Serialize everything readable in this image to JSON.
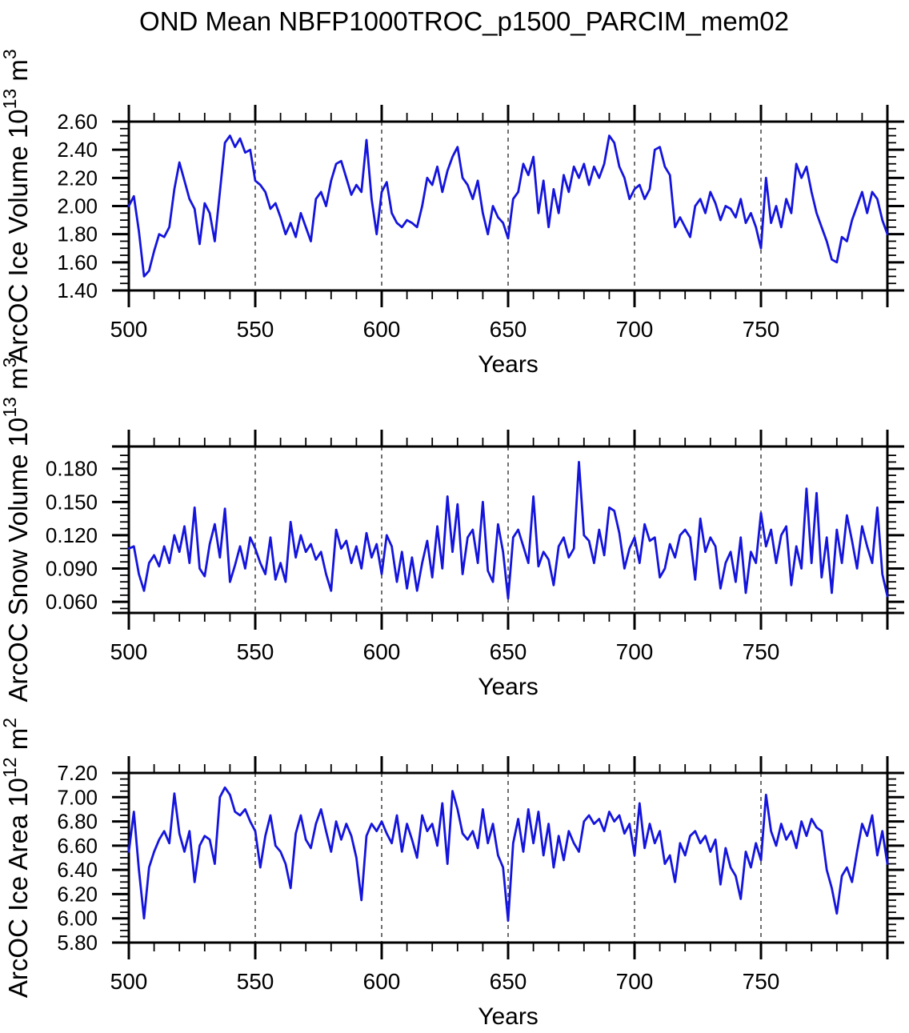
{
  "title": "OND Mean NBFP1000TROC_p1500_PARCIM_mem02",
  "xlabel": "Years",
  "colors": {
    "line": "#1414dd",
    "grid": "#404040",
    "axis": "#000000",
    "background": "#ffffff",
    "text": "#000000"
  },
  "chart_data": [
    {
      "type": "line",
      "name": "ice-volume",
      "title": "",
      "ylabel": "ArcOC Ice Volume 10^13 m^3",
      "ylabel_parts": [
        {
          "t": "ArcOC Ice Volume 10"
        },
        {
          "t": "13",
          "sup": true
        },
        {
          "t": " m"
        },
        {
          "t": "3",
          "sup": true
        }
      ],
      "xlabel": "Years",
      "xlim": [
        500,
        800
      ],
      "ylim": [
        1.4,
        2.6
      ],
      "x_major_step": 50,
      "x_minor_step": 10,
      "x_ticks_labeled": [
        500,
        550,
        600,
        650,
        700,
        750
      ],
      "y_ticks": [
        1.4,
        1.6,
        1.8,
        2.0,
        2.2,
        2.4,
        2.6
      ],
      "y_tick_labels": [
        "1.40",
        "1.60",
        "1.80",
        "2.00",
        "2.20",
        "2.40",
        "2.60"
      ],
      "y_minor_step": 0.05,
      "gridlines_x": [
        550,
        600,
        650,
        700,
        750
      ],
      "grid": "vertical-dashed",
      "legend": "none",
      "series": [
        {
          "name": "OND mean ArcOC ice volume (10^13 m^3)",
          "x_start": 500,
          "x_step": 2,
          "values": [
            2.0,
            2.07,
            1.82,
            1.5,
            1.54,
            1.68,
            1.8,
            1.78,
            1.85,
            2.12,
            2.31,
            2.18,
            2.05,
            1.98,
            1.73,
            2.02,
            1.95,
            1.75,
            2.1,
            2.45,
            2.5,
            2.42,
            2.48,
            2.38,
            2.4,
            2.18,
            2.15,
            2.1,
            1.98,
            2.02,
            1.92,
            1.8,
            1.88,
            1.78,
            1.95,
            1.85,
            1.75,
            2.05,
            2.1,
            2.0,
            2.18,
            2.3,
            2.32,
            2.2,
            2.08,
            2.15,
            2.1,
            2.47,
            2.05,
            1.8,
            2.1,
            2.17,
            1.95,
            1.88,
            1.85,
            1.9,
            1.88,
            1.85,
            2.0,
            2.2,
            2.15,
            2.28,
            2.1,
            2.25,
            2.35,
            2.42,
            2.2,
            2.15,
            2.05,
            2.18,
            1.95,
            1.8,
            2.0,
            1.92,
            1.88,
            1.77,
            2.05,
            2.1,
            2.3,
            2.22,
            2.35,
            1.95,
            2.18,
            1.85,
            2.12,
            1.95,
            2.22,
            2.1,
            2.28,
            2.2,
            2.3,
            2.15,
            2.28,
            2.2,
            2.3,
            2.5,
            2.45,
            2.28,
            2.2,
            2.05,
            2.12,
            2.15,
            2.05,
            2.12,
            2.4,
            2.42,
            2.28,
            2.22,
            1.85,
            1.92,
            1.85,
            1.78,
            2.0,
            2.05,
            1.95,
            2.1,
            2.02,
            1.9,
            2.0,
            1.98,
            1.92,
            2.05,
            1.88,
            1.95,
            1.85,
            1.7,
            2.2,
            1.88,
            2.0,
            1.85,
            2.05,
            1.95,
            2.3,
            2.2,
            2.28,
            2.1,
            1.95,
            1.85,
            1.75,
            1.62,
            1.6,
            1.78,
            1.75,
            1.9,
            2.0,
            2.1,
            1.95,
            2.1,
            2.05,
            1.9,
            1.8
          ]
        }
      ]
    },
    {
      "type": "line",
      "name": "snow-volume",
      "title": "",
      "ylabel": "ArcOC Snow Volume 10^13 m^3",
      "ylabel_parts": [
        {
          "t": "ArcOC Snow Volume 10"
        },
        {
          "t": "13",
          "sup": true
        },
        {
          "t": " m"
        },
        {
          "t": "3",
          "sup": true
        }
      ],
      "xlabel": "Years",
      "xlim": [
        500,
        800
      ],
      "ylim": [
        0.05,
        0.2
      ],
      "x_major_step": 50,
      "x_minor_step": 10,
      "x_ticks_labeled": [
        500,
        550,
        600,
        650,
        700,
        750
      ],
      "y_ticks": [
        0.06,
        0.09,
        0.12,
        0.15,
        0.18
      ],
      "y_tick_labels": [
        "0.060",
        "0.090",
        "0.120",
        "0.150",
        "0.180"
      ],
      "y_minor_step": 0.006,
      "gridlines_x": [
        550,
        600,
        650,
        700,
        750
      ],
      "grid": "vertical-dashed",
      "legend": "none",
      "series": [
        {
          "name": "OND mean ArcOC snow volume (10^13 m^3)",
          "x_start": 500,
          "x_step": 2,
          "values": [
            0.108,
            0.11,
            0.085,
            0.07,
            0.095,
            0.102,
            0.092,
            0.11,
            0.095,
            0.12,
            0.105,
            0.128,
            0.095,
            0.145,
            0.09,
            0.083,
            0.112,
            0.13,
            0.1,
            0.144,
            0.078,
            0.093,
            0.11,
            0.09,
            0.118,
            0.108,
            0.095,
            0.085,
            0.118,
            0.08,
            0.095,
            0.078,
            0.132,
            0.1,
            0.12,
            0.105,
            0.112,
            0.098,
            0.105,
            0.085,
            0.07,
            0.125,
            0.108,
            0.115,
            0.095,
            0.11,
            0.09,
            0.122,
            0.1,
            0.112,
            0.085,
            0.12,
            0.11,
            0.078,
            0.105,
            0.072,
            0.1,
            0.07,
            0.095,
            0.115,
            0.082,
            0.128,
            0.09,
            0.155,
            0.105,
            0.148,
            0.085,
            0.118,
            0.125,
            0.095,
            0.15,
            0.088,
            0.078,
            0.13,
            0.105,
            0.063,
            0.118,
            0.125,
            0.11,
            0.095,
            0.155,
            0.092,
            0.105,
            0.098,
            0.075,
            0.11,
            0.118,
            0.1,
            0.108,
            0.186,
            0.12,
            0.115,
            0.095,
            0.125,
            0.102,
            0.145,
            0.142,
            0.122,
            0.09,
            0.108,
            0.118,
            0.095,
            0.13,
            0.115,
            0.118,
            0.082,
            0.09,
            0.112,
            0.1,
            0.12,
            0.125,
            0.118,
            0.08,
            0.135,
            0.105,
            0.118,
            0.11,
            0.072,
            0.095,
            0.105,
            0.078,
            0.118,
            0.068,
            0.105,
            0.095,
            0.14,
            0.11,
            0.125,
            0.095,
            0.12,
            0.128,
            0.075,
            0.11,
            0.09,
            0.162,
            0.095,
            0.158,
            0.082,
            0.118,
            0.068,
            0.125,
            0.095,
            0.138,
            0.115,
            0.09,
            0.128,
            0.11,
            0.095,
            0.145,
            0.085,
            0.065
          ]
        }
      ]
    },
    {
      "type": "line",
      "name": "ice-area",
      "title": "",
      "ylabel": "ArcOC Ice Area 10^12 m^2",
      "ylabel_parts": [
        {
          "t": "ArcOC Ice Area 10"
        },
        {
          "t": "12",
          "sup": true
        },
        {
          "t": " m"
        },
        {
          "t": "2",
          "sup": true
        }
      ],
      "xlabel": "Years",
      "xlim": [
        500,
        800
      ],
      "ylim": [
        5.8,
        7.2
      ],
      "x_major_step": 50,
      "x_minor_step": 10,
      "x_ticks_labeled": [
        500,
        550,
        600,
        650,
        700,
        750
      ],
      "y_ticks": [
        5.8,
        6.0,
        6.2,
        6.4,
        6.6,
        6.8,
        7.0,
        7.2
      ],
      "y_tick_labels": [
        "5.80",
        "6.00",
        "6.20",
        "6.40",
        "6.60",
        "6.80",
        "7.00",
        "7.20"
      ],
      "y_minor_step": 0.05,
      "gridlines_x": [
        550,
        600,
        650,
        700,
        750
      ],
      "grid": "vertical-dashed",
      "legend": "none",
      "series": [
        {
          "name": "OND mean ArcOC ice area (10^12 m^2)",
          "x_start": 500,
          "x_step": 2,
          "values": [
            6.55,
            6.88,
            6.4,
            6.0,
            6.42,
            6.55,
            6.65,
            6.72,
            6.62,
            7.03,
            6.7,
            6.55,
            6.72,
            6.3,
            6.6,
            6.68,
            6.65,
            6.45,
            7.0,
            7.08,
            7.02,
            6.88,
            6.85,
            6.9,
            6.8,
            6.72,
            6.42,
            6.68,
            6.85,
            6.6,
            6.55,
            6.45,
            6.25,
            6.7,
            6.85,
            6.65,
            6.58,
            6.78,
            6.9,
            6.72,
            6.55,
            6.8,
            6.65,
            6.78,
            6.68,
            6.5,
            6.15,
            6.68,
            6.78,
            6.72,
            6.8,
            6.7,
            6.62,
            6.85,
            6.55,
            6.78,
            6.65,
            6.5,
            6.85,
            6.72,
            6.78,
            6.6,
            6.95,
            6.45,
            7.05,
            6.9,
            6.7,
            6.65,
            6.72,
            6.58,
            6.9,
            6.62,
            6.78,
            6.52,
            6.42,
            5.98,
            6.62,
            6.82,
            6.55,
            6.9,
            6.62,
            6.88,
            6.52,
            6.78,
            6.42,
            6.68,
            6.48,
            6.72,
            6.62,
            6.55,
            6.8,
            6.85,
            6.78,
            6.82,
            6.72,
            6.88,
            6.8,
            6.85,
            6.7,
            6.78,
            6.52,
            6.95,
            6.58,
            6.78,
            6.62,
            6.72,
            6.45,
            6.52,
            6.3,
            6.62,
            6.52,
            6.68,
            6.72,
            6.62,
            6.68,
            6.55,
            6.65,
            6.28,
            6.58,
            6.42,
            6.35,
            6.16,
            6.55,
            6.42,
            6.62,
            6.48,
            7.02,
            6.72,
            6.6,
            6.78,
            6.65,
            6.72,
            6.58,
            6.8,
            6.68,
            6.82,
            6.75,
            6.72,
            6.4,
            6.25,
            6.04,
            6.35,
            6.42,
            6.3,
            6.55,
            6.78,
            6.68,
            6.85,
            6.52,
            6.72,
            6.45
          ]
        }
      ]
    }
  ]
}
